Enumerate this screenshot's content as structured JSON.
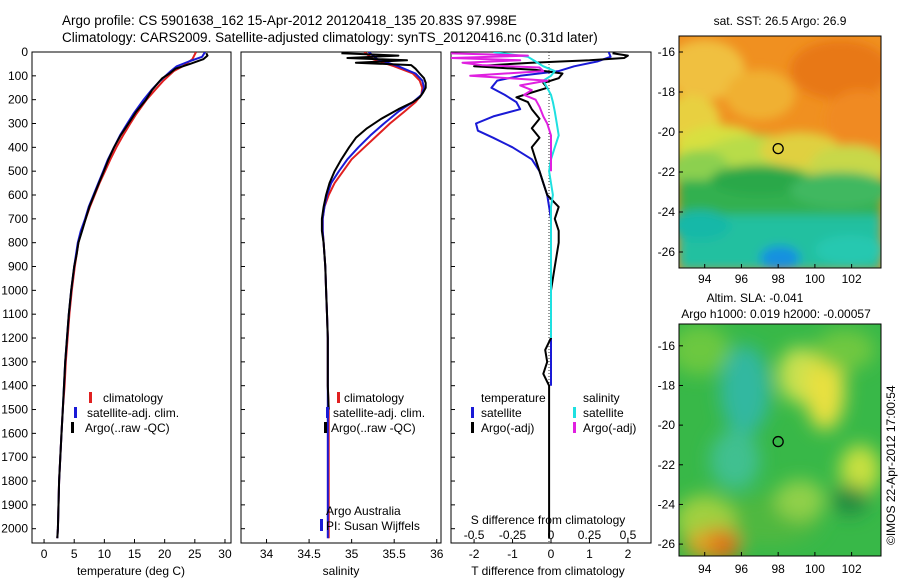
{
  "header": {
    "title_line1": "Argo profile: CS 5901638_162 15-Apr-2012 20120418_135 20.83S 97.998E",
    "title_line2": "Climatology: CARS2009. Satellite-adjusted climatology: synTS_20120416.nc (0.31d later)"
  },
  "side_label": "©IMOS 22-Apr-2012 17:00:54",
  "colors": {
    "climatology": "#e02020",
    "satellite": "#1a1ad6",
    "argo": "#000000",
    "salinity_satellite": "#1ee0e0",
    "salinity_argo": "#e020e0"
  },
  "chart_data": [
    {
      "type": "line",
      "id": "temperature",
      "xlabel": "temperature (deg C)",
      "xlim": [
        -2,
        31
      ],
      "ylim": [
        2060,
        0
      ],
      "x_ticks": [
        0,
        5,
        10,
        15,
        20,
        25,
        30
      ],
      "y_ticks": [
        0,
        100,
        200,
        300,
        400,
        500,
        600,
        700,
        800,
        900,
        1000,
        1100,
        1200,
        1300,
        1400,
        1500,
        1600,
        1700,
        1800,
        1900,
        2000
      ],
      "legend": [
        "climatology",
        "satellite-adj. clim.",
        "Argo(..raw -QC)"
      ],
      "series": [
        {
          "name": "climatology",
          "color_key": "climatology",
          "depth": [
            0,
            30,
            60,
            80,
            120,
            160,
            200,
            260,
            300,
            350,
            400,
            450,
            500,
            550,
            600,
            650,
            700,
            750,
            800,
            900,
            1000,
            1100,
            1200,
            1300,
            1400,
            1500,
            1600,
            1700,
            1800,
            1900,
            2000,
            2040
          ],
          "values": [
            25.2,
            24.6,
            23.0,
            21.5,
            19.8,
            18.4,
            17.0,
            15.3,
            14.3,
            13.1,
            12.0,
            11.0,
            10.1,
            9.2,
            8.4,
            7.6,
            6.9,
            6.2,
            5.7,
            5.1,
            4.6,
            4.2,
            3.9,
            3.6,
            3.4,
            3.1,
            2.9,
            2.7,
            2.5,
            2.4,
            2.3,
            2.2
          ]
        },
        {
          "name": "satellite-adj. clim.",
          "color_key": "satellite",
          "depth": [
            0,
            20,
            40,
            60,
            80,
            120,
            160,
            200,
            260,
            300,
            350,
            400,
            450,
            500,
            550,
            600,
            650,
            700,
            750,
            800,
            900,
            1000,
            1100,
            1200,
            1300,
            1400,
            1500,
            1600,
            1700,
            1800,
            1900,
            2000,
            2040
          ],
          "values": [
            26.7,
            26.2,
            24.0,
            22.0,
            21.0,
            19.3,
            17.8,
            16.5,
            14.8,
            13.8,
            12.6,
            11.6,
            10.6,
            9.8,
            9.0,
            8.2,
            7.4,
            6.8,
            6.1,
            5.6,
            5.0,
            4.5,
            4.1,
            3.8,
            3.5,
            3.3,
            3.1,
            2.9,
            2.7,
            2.5,
            2.4,
            2.3,
            2.2
          ]
        },
        {
          "name": "Argo(..raw -QC)",
          "color_key": "argo",
          "depth": [
            5,
            15,
            30,
            50,
            70,
            90,
            110,
            130,
            160,
            200,
            250,
            300,
            350,
            400,
            450,
            500,
            550,
            600,
            650,
            700,
            750,
            800,
            850,
            900,
            1000,
            1100,
            1200,
            1300,
            1400,
            1500,
            1600,
            1700,
            1800,
            1900,
            2000,
            2040
          ],
          "values": [
            26.9,
            27.1,
            26.4,
            24.2,
            21.8,
            20.8,
            19.6,
            18.9,
            17.9,
            16.9,
            15.3,
            14.0,
            12.7,
            11.6,
            10.7,
            9.9,
            9.1,
            8.3,
            7.5,
            6.9,
            6.3,
            5.7,
            5.4,
            5.0,
            4.5,
            4.1,
            3.8,
            3.5,
            3.3,
            3.1,
            2.9,
            2.7,
            2.5,
            2.4,
            2.3,
            2.2
          ]
        }
      ]
    },
    {
      "type": "line",
      "id": "salinity",
      "xlabel": "salinity",
      "xlim": [
        33.7,
        36.05
      ],
      "ylim": [
        2060,
        0
      ],
      "x_ticks": [
        34,
        34.5,
        35,
        35.5,
        36
      ],
      "legend": [
        "climatology",
        "satellite-adj. clim.",
        "Argo(..raw -QC)"
      ],
      "annotation": [
        "Argo Australia",
        "PI: Susan Wijffels"
      ],
      "series": [
        {
          "name": "climatology",
          "color_key": "climatology",
          "depth": [
            0,
            30,
            60,
            90,
            120,
            150,
            180,
            210,
            250,
            300,
            350,
            400,
            450,
            500,
            550,
            600,
            650,
            700,
            750,
            800,
            900,
            1000,
            1100,
            1200,
            1300,
            1400,
            1500,
            1600,
            1700,
            1800,
            1900,
            2000,
            2040
          ],
          "values": [
            35.15,
            35.25,
            35.5,
            35.72,
            35.8,
            35.83,
            35.82,
            35.75,
            35.62,
            35.45,
            35.3,
            35.15,
            35.0,
            34.9,
            34.8,
            34.73,
            34.68,
            34.66,
            34.66,
            34.67,
            34.69,
            34.7,
            34.71,
            34.72,
            34.72,
            34.72,
            34.73,
            34.73,
            34.73,
            34.73,
            34.73,
            34.73,
            34.73
          ]
        },
        {
          "name": "satellite-adj. clim.",
          "color_key": "satellite",
          "depth": [
            0,
            30,
            60,
            90,
            120,
            150,
            180,
            210,
            250,
            300,
            350,
            400,
            450,
            500,
            550,
            600,
            650,
            700,
            750,
            800,
            900,
            1000,
            1100,
            1200,
            1300,
            1400,
            1500,
            1600,
            1700,
            1800,
            1900,
            2000,
            2040
          ],
          "values": [
            35.2,
            35.3,
            35.55,
            35.75,
            35.83,
            35.85,
            35.82,
            35.72,
            35.55,
            35.38,
            35.22,
            35.08,
            34.95,
            34.85,
            34.76,
            34.71,
            34.68,
            34.66,
            34.66,
            34.67,
            34.69,
            34.7,
            34.71,
            34.72,
            34.72,
            34.72,
            34.72,
            34.72,
            34.72,
            34.72,
            34.72,
            34.72,
            34.72
          ]
        },
        {
          "name": "Argo(..raw -QC)",
          "color_key": "argo",
          "depth": [
            5,
            15,
            25,
            35,
            45,
            55,
            70,
            90,
            110,
            130,
            150,
            170,
            190,
            210,
            240,
            280,
            320,
            360,
            400,
            450,
            500,
            550,
            600,
            650,
            700,
            750,
            800,
            900,
            1000,
            1100,
            1200,
            1300,
            1400,
            1500
          ],
          "values": [
            34.88,
            35.55,
            34.95,
            35.65,
            35.05,
            35.7,
            35.75,
            35.8,
            35.85,
            35.87,
            35.87,
            35.84,
            35.8,
            35.72,
            35.55,
            35.35,
            35.18,
            35.05,
            34.97,
            34.88,
            34.8,
            34.74,
            34.7,
            34.67,
            34.65,
            34.65,
            34.67,
            34.69,
            34.7,
            34.71,
            34.72,
            34.72,
            34.72,
            34.73
          ]
        }
      ]
    },
    {
      "type": "line",
      "id": "differences",
      "xlabel": "T difference from climatology",
      "xlabel_top": "S difference from climatology",
      "xlim": [
        -2.6,
        2.6
      ],
      "ylim": [
        2060,
        0
      ],
      "x_ticks": [
        -2,
        -1,
        0,
        1,
        2
      ],
      "x_ticks_top": [
        "-0.5",
        "-0.25",
        "0",
        "0.25",
        "0.5"
      ],
      "legend_temperature": [
        "temperature",
        "satellite",
        "Argo(-adj)"
      ],
      "legend_salinity": [
        "salinity",
        "satellite",
        "Argo(-adj)"
      ],
      "series": [
        {
          "name": "satellite",
          "group": "temperature",
          "color_key": "satellite",
          "depth": [
            0,
            20,
            40,
            60,
            80,
            100,
            120,
            150,
            180,
            210,
            240,
            270,
            300,
            330,
            360,
            400,
            450,
            500,
            550,
            600,
            700,
            800,
            900,
            1000,
            1200,
            1400
          ],
          "values": [
            1.5,
            1.55,
            1.2,
            0.6,
            0.2,
            -0.8,
            -1.4,
            -1.55,
            -1.2,
            -0.9,
            -0.8,
            -1.5,
            -1.95,
            -1.9,
            -1.5,
            -1.0,
            -0.5,
            -0.3,
            -0.2,
            -0.1,
            0,
            0,
            0,
            0,
            0,
            0
          ]
        },
        {
          "name": "Argo(-adj)",
          "group": "temperature",
          "color_key": "argo",
          "depth": [
            5,
            15,
            25,
            35,
            45,
            60,
            75,
            90,
            110,
            130,
            150,
            170,
            190,
            210,
            240,
            280,
            320,
            360,
            400,
            450,
            500,
            550,
            600,
            650,
            700,
            750,
            800,
            900,
            1000,
            1100,
            1200,
            1250,
            1300,
            1350,
            1400,
            1500,
            1600,
            1700,
            1800,
            1900,
            2000,
            2040
          ],
          "values": [
            1.6,
            2.0,
            1.9,
            1.0,
            -0.5,
            -2.0,
            -0.4,
            0.3,
            0.2,
            -0.2,
            -0.1,
            -0.5,
            -0.9,
            -0.6,
            -0.5,
            -0.3,
            -0.5,
            -0.3,
            -0.5,
            -0.4,
            -0.3,
            -0.2,
            -0.1,
            0.2,
            0.1,
            0.2,
            0.2,
            0.1,
            0,
            0,
            0,
            -0.15,
            -0.1,
            -0.2,
            -0.05,
            -0.05,
            -0.05,
            -0.05,
            -0.05,
            -0.05,
            -0.05,
            -0.05
          ]
        },
        {
          "name": "satellite",
          "group": "salinity",
          "color_key": "salinity_satellite",
          "depth": [
            0,
            20,
            40,
            60,
            80,
            100,
            120,
            150,
            180,
            210,
            250,
            300,
            350,
            400,
            450,
            500,
            550,
            600,
            650,
            700,
            800,
            900,
            1000,
            1100,
            1200
          ],
          "values": [
            -1.5,
            -0.6,
            -0.4,
            -0.2,
            0.1,
            0.0,
            -0.2,
            -0.1,
            0.0,
            0.05,
            0.1,
            0.15,
            0.2,
            0.1,
            0.0,
            -0.05,
            0.0,
            0.05,
            0.0,
            0.0,
            0.0,
            0.0,
            0.0,
            0.0,
            0.0
          ]
        },
        {
          "name": "Argo(-adj)",
          "group": "salinity",
          "color_key": "salinity_argo",
          "depth": [
            5,
            15,
            25,
            35,
            45,
            55,
            65,
            80,
            100,
            120,
            140,
            160,
            180,
            200,
            230,
            270,
            300,
            350,
            400,
            450,
            500
          ],
          "values": [
            -2.7,
            -0.6,
            -2.6,
            -0.8,
            -2.3,
            -1.8,
            -0.3,
            -0.2,
            -2.1,
            -0.1,
            -0.8,
            -0.5,
            -0.7,
            -0.4,
            -0.3,
            -0.2,
            -0.1,
            0.0,
            0.0,
            0.0,
            0.0
          ]
        }
      ]
    },
    {
      "type": "heatmap",
      "id": "sst_map",
      "title": "sat. SST: 26.5 Argo: 26.9",
      "x_ticks": [
        94,
        96,
        98,
        100,
        102
      ],
      "y_ticks": [
        -16,
        -18,
        -20,
        -22,
        -24,
        -26
      ],
      "xlim": [
        92.6,
        103.6
      ],
      "ylim": [
        -26.8,
        -15.2
      ],
      "marker": {
        "lon": 98.0,
        "lat": -20.83
      }
    },
    {
      "type": "heatmap",
      "id": "sla_map",
      "title_line1": "Altim. SLA: -0.041",
      "title_line2": "Argo h1000: 0.019 h2000: -0.00057",
      "x_ticks": [
        94,
        96,
        98,
        100,
        102
      ],
      "y_ticks": [
        -16,
        -18,
        -20,
        -22,
        -24,
        -26
      ],
      "xlim": [
        92.6,
        103.6
      ],
      "ylim": [
        -26.6,
        -14.9
      ],
      "marker": {
        "lon": 98.0,
        "lat": -20.83
      }
    }
  ]
}
